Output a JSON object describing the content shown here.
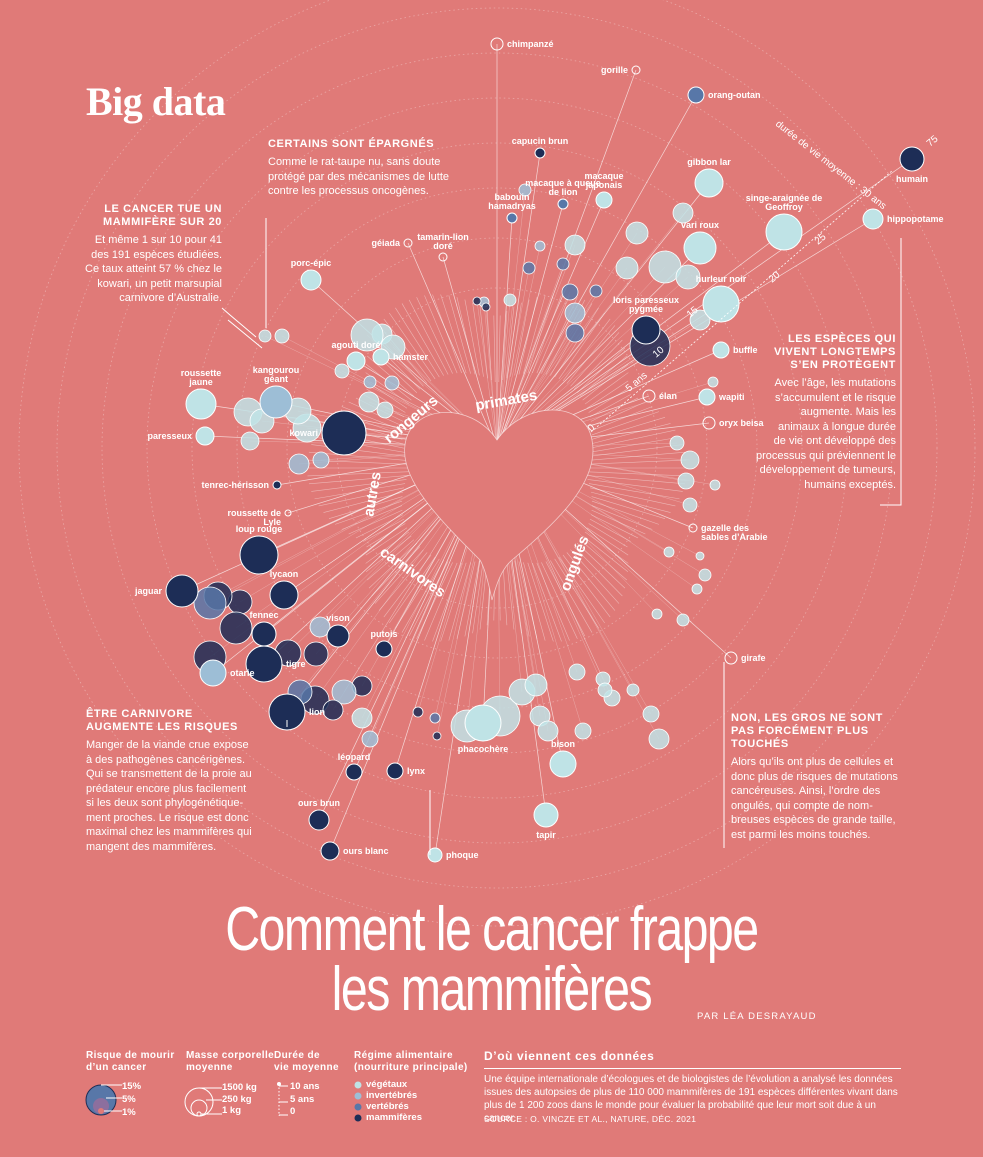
{
  "brand": "Big data",
  "title_line1": "Comment le cancer frappe",
  "title_line2": "les mammifères",
  "byline": "PAR LÉA DESRAYAUD",
  "annotations": {
    "epargnes": {
      "title": "CERTAINS SONT ÉPARGNÉS",
      "text": [
        "Comme le rat-taupe nu, sans doute",
        "protégé par des mécanismes de lutte",
        "contre les processus oncogènes."
      ]
    },
    "cancer_tue": {
      "title": [
        "LE CANCER TUE UN",
        "MAMMIFÈRE SUR 20"
      ],
      "text": [
        "Et même 1 sur 10 pour 41",
        "des 191 espèces étudiées.",
        "Ce taux atteint 57 % chez le",
        "kowari, un petit marsupial",
        "carnivore d’Australie."
      ]
    },
    "longtemps": {
      "title": [
        "LES ESPÈCES QUI",
        "VIVENT LONGTEMPS",
        "S’EN PROTÈGENT"
      ],
      "text": [
        "Avec l’âge, les mutations",
        "s’accumulent et le risque",
        "augmente. Mais les",
        "animaux à longue durée",
        "de vie ont développé des",
        "processus qui préviennent le",
        "développement de tumeurs,",
        "humains exceptés."
      ]
    },
    "carnivore": {
      "title": [
        "ÊTRE CARNIVORE",
        "AUGMENTE LES RISQUES"
      ],
      "text": [
        "Manger de la viande crue expose",
        "à des pathogènes cancérigènes.",
        "Qui se transmettent de la proie au",
        "prédateur encore plus facilement",
        "si les deux sont phylogénétique-",
        "ment proches. Le risque est donc",
        "maximal chez les mammifères qui",
        "mangent des mammifères."
      ]
    },
    "gros": {
      "title": [
        "NON, LES GROS NE SONT",
        "PAS FORCÉMENT PLUS",
        "TOUCHÉS"
      ],
      "text": [
        "Alors qu’ils ont plus de cellules et",
        "donc plus de risques de mutations",
        "cancéreuses. Ainsi, l’ordre des",
        "ongulés, qui compte de nom-",
        "breuses espèces de grande taille,",
        "est parmi les moins touchés."
      ]
    }
  },
  "legend": {
    "risk_title": [
      "Risque de mourir",
      "d’un cancer"
    ],
    "risk_values": [
      "15%",
      "5%",
      "1%"
    ],
    "mass_title": [
      "Masse corporelle",
      "moyenne"
    ],
    "mass_values": [
      "1500 kg",
      "250 kg",
      "1 kg"
    ],
    "life_title": [
      "Durée de",
      "vie moyenne"
    ],
    "life_values": [
      "10 ans",
      "5 ans",
      "0"
    ],
    "diet_title": [
      "Régime alimentaire",
      "(nourriture principale)"
    ],
    "diet_values": [
      "végétaux",
      "invertébrés",
      "vertébrés",
      "mammifères"
    ]
  },
  "colors": {
    "background": "#e07a78",
    "vegetaux": "#bfe3e6",
    "invertebres": "#9dbed6",
    "vertebres": "#5877a8",
    "mammiferes": "#1d2d56"
  },
  "source": {
    "title": "D’où viennent ces données",
    "text": [
      "Une équipe internationale d’écologues et de biologistes de l’évolution a analysé les données",
      "issues des autopsies de plus de 110 000 mammifères de 191 espèces différentes vivant dans",
      "plus de 1 200 zoos dans le monde pour évaluer la probabilité que leur mort soit due à un cancer."
    ],
    "ref": "SOURCE : O. VINCZE ET AL., NATURE, DÉC. 2021"
  },
  "chart_data": {
    "type": "radial bubble",
    "radial_axis_label": "durée de vie moyenne : 30 ans",
    "radial_ticks": [
      "0",
      "5 ans",
      "10",
      "15",
      "20",
      "25",
      "75"
    ],
    "groups": [
      "primates",
      "rongeurs",
      "autres",
      "carnivores",
      "ongulés"
    ],
    "labeled_species": [
      {
        "name": "chimpanzé",
        "group": "primates"
      },
      {
        "name": "gorille",
        "group": "primates"
      },
      {
        "name": "orang-outan",
        "group": "primates"
      },
      {
        "name": "capucin brun",
        "group": "primates"
      },
      {
        "name": "macaque à queue de lion",
        "group": "primates"
      },
      {
        "name": "macaque japonais",
        "group": "primates"
      },
      {
        "name": "babouin hamadryas",
        "group": "primates"
      },
      {
        "name": "gibbon lar",
        "group": "primates"
      },
      {
        "name": "humain",
        "group": "primates",
        "lifespan_years": 75
      },
      {
        "name": "singe-araignée de Geoffroy",
        "group": "primates"
      },
      {
        "name": "géiada",
        "group": "primates"
      },
      {
        "name": "tamarin-lion doré",
        "group": "primates"
      },
      {
        "name": "vari roux",
        "group": "primates"
      },
      {
        "name": "hurleur noir",
        "group": "primates"
      },
      {
        "name": "loris paresseux pygmée",
        "group": "primates"
      },
      {
        "name": "porc-épic",
        "group": "rongeurs"
      },
      {
        "name": "agouti doré",
        "group": "rongeurs"
      },
      {
        "name": "hamster",
        "group": "rongeurs"
      },
      {
        "name": "roussette jaune",
        "group": "autres"
      },
      {
        "name": "kangourou géant",
        "group": "autres"
      },
      {
        "name": "kowari",
        "group": "autres",
        "cancer_risk_pct": 57
      },
      {
        "name": "paresseux",
        "group": "autres"
      },
      {
        "name": "tenrec-hérisson",
        "group": "autres"
      },
      {
        "name": "roussette de Lyle",
        "group": "autres"
      },
      {
        "name": "loup rouge",
        "group": "carnivores"
      },
      {
        "name": "jaguar",
        "group": "carnivores"
      },
      {
        "name": "lycaon",
        "group": "carnivores"
      },
      {
        "name": "fennec",
        "group": "carnivores"
      },
      {
        "name": "vison",
        "group": "carnivores"
      },
      {
        "name": "putois",
        "group": "carnivores"
      },
      {
        "name": "tigre",
        "group": "carnivores"
      },
      {
        "name": "otarie",
        "group": "carnivores"
      },
      {
        "name": "lion",
        "group": "carnivores"
      },
      {
        "name": "léopard",
        "group": "carnivores"
      },
      {
        "name": "lynx",
        "group": "carnivores"
      },
      {
        "name": "ours brun",
        "group": "carnivores"
      },
      {
        "name": "ours blanc",
        "group": "carnivores"
      },
      {
        "name": "phoque",
        "group": "carnivores"
      },
      {
        "name": "phacochère",
        "group": "ongulés"
      },
      {
        "name": "bison",
        "group": "ongulés"
      },
      {
        "name": "tapir",
        "group": "ongulés"
      },
      {
        "name": "girafe",
        "group": "ongulés"
      },
      {
        "name": "gazelle des sables d’Arabie",
        "group": "ongulés"
      },
      {
        "name": "oryx beisa",
        "group": "ongulés"
      },
      {
        "name": "wapiti",
        "group": "ongulés"
      },
      {
        "name": "élan",
        "group": "ongulés"
      },
      {
        "name": "buffle",
        "group": "ongulés"
      },
      {
        "name": "hippopotame",
        "group": "ongulés"
      }
    ]
  }
}
